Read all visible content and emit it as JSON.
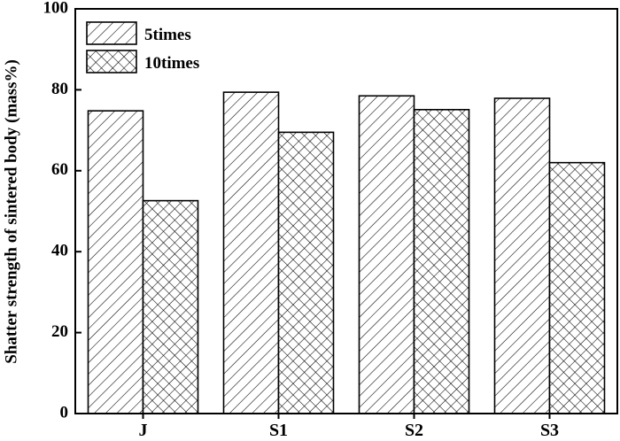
{
  "chart_data": {
    "type": "bar",
    "categories": [
      "J",
      "S1",
      "S2",
      "S3"
    ],
    "series": [
      {
        "name": "5times",
        "values": [
          74.8,
          79.4,
          78.5,
          77.9
        ],
        "pattern": "diagonal-hatch"
      },
      {
        "name": "10times",
        "values": [
          52.6,
          69.5,
          75.1,
          62.0
        ],
        "pattern": "cross-hatch"
      }
    ],
    "title": "",
    "xlabel": "",
    "ylabel": "Shatter strength of sintered body (mass%)",
    "ylim": [
      0,
      100
    ],
    "yticks": [
      "0",
      "20",
      "40",
      "60",
      "80",
      "100"
    ],
    "grid": false,
    "legend_position": "top-left"
  },
  "colors": {
    "stroke": "#000000",
    "fill": "#ffffff"
  }
}
